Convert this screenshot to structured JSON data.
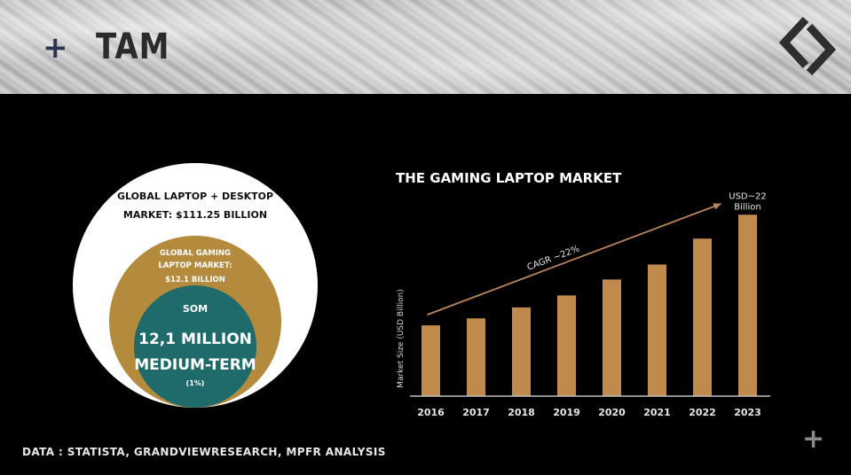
{
  "slide": {
    "title": "TAM",
    "source_note": "DATA : STATISTA, GRANDVIEWRESEARCH,  MPFR ANALYSIS"
  },
  "venn": {
    "outer_label_line1": "GLOBAL LAPTOP + DESKTOP",
    "outer_label_line2": "MARKET: $111.25 BILLION",
    "middle_label_line1": "GLOBAL GAMING",
    "middle_label_line2": "LAPTOP MARKET:",
    "middle_label_line3": "$12.1 BILLION",
    "inner_label_top": "SOM",
    "inner_label_line1": "12,1 MILLION",
    "inner_label_line2": "MEDIUM-TERM",
    "inner_label_line3": "(1%)",
    "colors": {
      "outer": "#ffffff",
      "middle": "#b48a3c",
      "inner": "#1f6a6a"
    }
  },
  "chart_data": {
    "type": "bar",
    "title": "THE GAMING LAPTOP MARKET",
    "ylabel": "Market Size (USD Billion)",
    "xlabel": "",
    "categories": [
      "2016",
      "2017",
      "2018",
      "2019",
      "2020",
      "2021",
      "2022",
      "2023"
    ],
    "values": [
      7.1,
      7.8,
      8.9,
      10.1,
      11.7,
      13.2,
      15.8,
      18.2
    ],
    "ylim": [
      0,
      20
    ],
    "grid": false,
    "annotations": [
      {
        "text": "CAGR ~22%"
      },
      {
        "text": "USD~22",
        "text2": "Billion"
      }
    ],
    "bar_color": "#c08a4c"
  }
}
